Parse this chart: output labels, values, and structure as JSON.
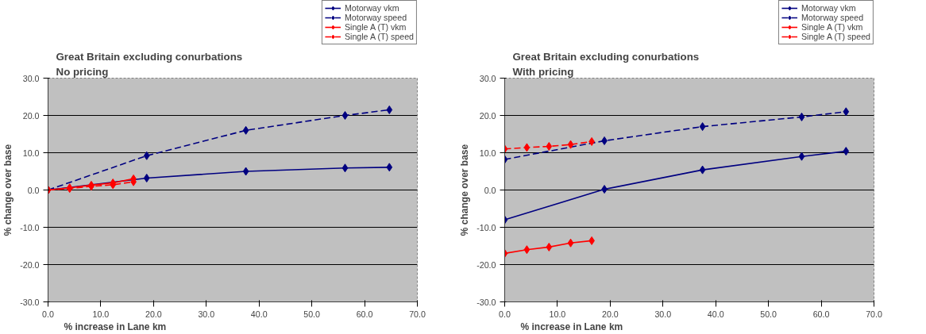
{
  "chart_data": [
    {
      "type": "line",
      "title": "Great Britain excluding conurbations",
      "subtitle": "No pricing",
      "xlabel": "% increase in Lane km",
      "ylabel": "% change over base",
      "xlim": [
        0,
        70
      ],
      "ylim": [
        -30,
        30
      ],
      "xticks": [
        {
          "value": 0,
          "label": "0.0"
        },
        {
          "value": 10,
          "label": "10.0"
        },
        {
          "value": 20,
          "label": "20.0"
        },
        {
          "value": 30,
          "label": "30.0"
        },
        {
          "value": 40,
          "label": "40.0"
        },
        {
          "value": 50,
          "label": "50.0"
        },
        {
          "value": 60,
          "label": "60.0"
        },
        {
          "value": 70,
          "label": "70.0"
        }
      ],
      "yticks": [
        {
          "value": -30,
          "label": "-30.0"
        },
        {
          "value": -20,
          "label": "-20.0"
        },
        {
          "value": -10,
          "label": "-10.0"
        },
        {
          "value": 0,
          "label": "0.0"
        },
        {
          "value": 10,
          "label": "10.0"
        },
        {
          "value": 20,
          "label": "20.0"
        },
        {
          "value": 30,
          "label": "30.0"
        }
      ],
      "grid": "y",
      "legend": "top right",
      "marker": "diamond",
      "series": [
        {
          "name": "Motorway vkm",
          "color": "#000080",
          "line_style": "solid",
          "x": [
            0,
            18.7,
            37.5,
            56.3,
            64.7
          ],
          "values": [
            0,
            3.2,
            5.0,
            5.9,
            6.1
          ]
        },
        {
          "name": "Motorway speed",
          "color": "#000080",
          "line_style": "dashed",
          "x": [
            0,
            18.7,
            37.5,
            56.3,
            64.7
          ],
          "values": [
            0,
            9.2,
            16.0,
            20.0,
            21.5
          ]
        },
        {
          "name": "Single A (T) vkm",
          "color": "#ff0000",
          "line_style": "solid",
          "x": [
            0,
            4.1,
            8.2,
            12.3,
            16.2
          ],
          "values": [
            0,
            0.6,
            1.3,
            1.9,
            3.0
          ]
        },
        {
          "name": "Single A (T) speed",
          "color": "#ff0000",
          "line_style": "dashed",
          "x": [
            0,
            4.1,
            8.2,
            12.3,
            16.2
          ],
          "values": [
            0,
            0.4,
            1.0,
            1.4,
            2.2
          ]
        }
      ]
    },
    {
      "type": "line",
      "title": "Great Britain excluding conurbations",
      "subtitle": "With pricing",
      "xlabel": "% increase in Lane km",
      "ylabel": "% change over base",
      "xlim": [
        0,
        70
      ],
      "ylim": [
        -30,
        30
      ],
      "xticks": [
        {
          "value": 0,
          "label": "0.0"
        },
        {
          "value": 10,
          "label": "10.0"
        },
        {
          "value": 20,
          "label": "20.0"
        },
        {
          "value": 30,
          "label": "30.0"
        },
        {
          "value": 40,
          "label": "40.0"
        },
        {
          "value": 50,
          "label": "50.0"
        },
        {
          "value": 60,
          "label": "60.0"
        },
        {
          "value": 70,
          "label": "70.0"
        }
      ],
      "yticks": [
        {
          "value": -30,
          "label": "-30.0"
        },
        {
          "value": -20,
          "label": "-20.0"
        },
        {
          "value": -10,
          "label": "-10.0"
        },
        {
          "value": 0,
          "label": "0.0"
        },
        {
          "value": 10,
          "label": "10.0"
        },
        {
          "value": 20,
          "label": "20.0"
        },
        {
          "value": 30,
          "label": "30.0"
        }
      ],
      "grid": "y",
      "legend": "top right",
      "marker": "diamond",
      "series": [
        {
          "name": "Motorway vkm",
          "color": "#000080",
          "line_style": "solid",
          "x": [
            0,
            18.9,
            37.5,
            56.3,
            64.7
          ],
          "values": [
            -8.0,
            0.2,
            5.4,
            9.0,
            10.4
          ]
        },
        {
          "name": "Motorway speed",
          "color": "#000080",
          "line_style": "dashed",
          "x": [
            0,
            18.9,
            37.5,
            56.3,
            64.7
          ],
          "values": [
            8.2,
            13.2,
            17.0,
            19.6,
            21.0
          ]
        },
        {
          "name": "Single A (T) vkm",
          "color": "#ff0000",
          "line_style": "solid",
          "x": [
            0,
            4.2,
            8.4,
            12.5,
            16.5
          ],
          "values": [
            -17.0,
            -16.0,
            -15.3,
            -14.2,
            -13.6
          ]
        },
        {
          "name": "Single A (T) speed",
          "color": "#ff0000",
          "line_style": "dashed",
          "x": [
            0,
            4.2,
            8.4,
            12.5,
            16.5
          ],
          "values": [
            11.0,
            11.4,
            11.7,
            12.2,
            13.0
          ]
        }
      ]
    }
  ]
}
